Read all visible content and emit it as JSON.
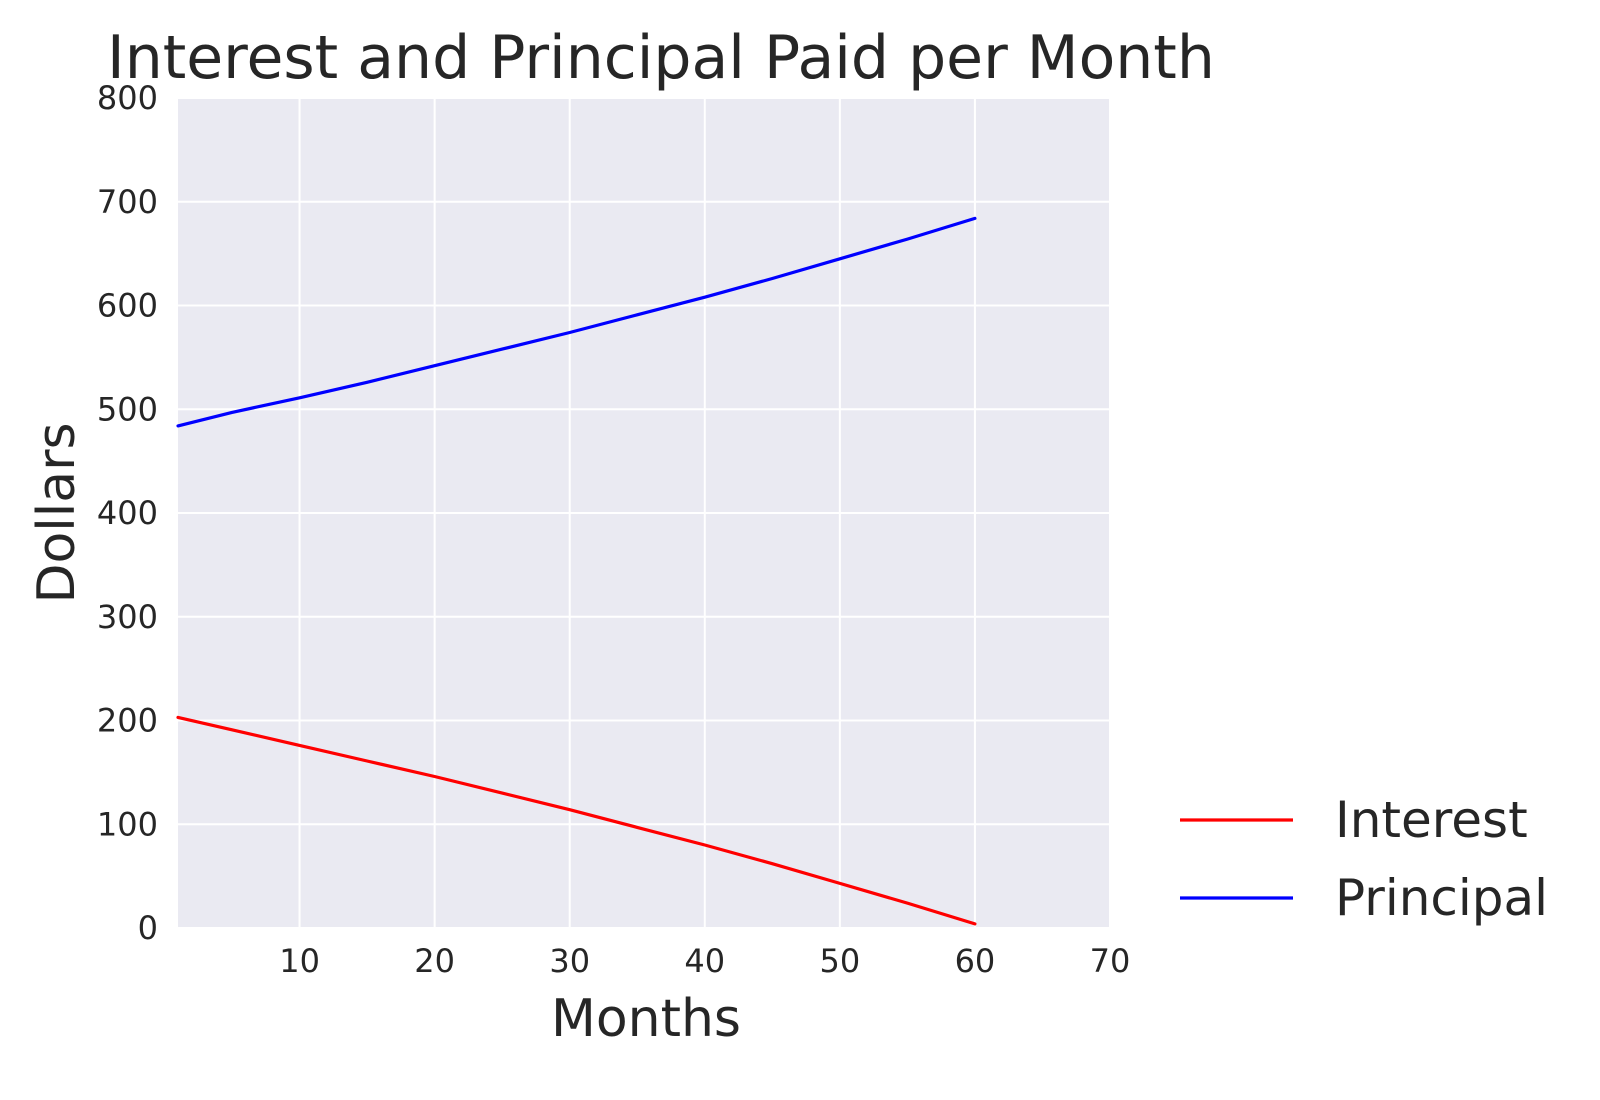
{
  "chart_data": {
    "type": "line",
    "title": "Interest and Principal Paid per Month",
    "xlabel": "Months",
    "ylabel": "Dollars",
    "xlim": [
      1,
      70
    ],
    "ylim": [
      0,
      800
    ],
    "xticks": [
      10,
      20,
      30,
      40,
      50,
      60,
      70
    ],
    "yticks": [
      0,
      100,
      200,
      300,
      400,
      500,
      600,
      700,
      800
    ],
    "grid": true,
    "legend": "outside-lower-right",
    "series": [
      {
        "name": "Interest",
        "color": "#ff0000",
        "x": [
          1,
          5,
          10,
          15,
          20,
          25,
          30,
          35,
          40,
          45,
          50,
          55,
          60
        ],
        "y": [
          203,
          191,
          176,
          161,
          146,
          130,
          114,
          97,
          80,
          62,
          43,
          24,
          4
        ]
      },
      {
        "name": "Principal",
        "color": "#0000ff",
        "x": [
          1,
          5,
          10,
          15,
          20,
          25,
          30,
          35,
          40,
          45,
          50,
          55,
          60
        ],
        "y": [
          484,
          497,
          511,
          526,
          542,
          558,
          574,
          591,
          608,
          626,
          645,
          664,
          684
        ]
      }
    ]
  }
}
